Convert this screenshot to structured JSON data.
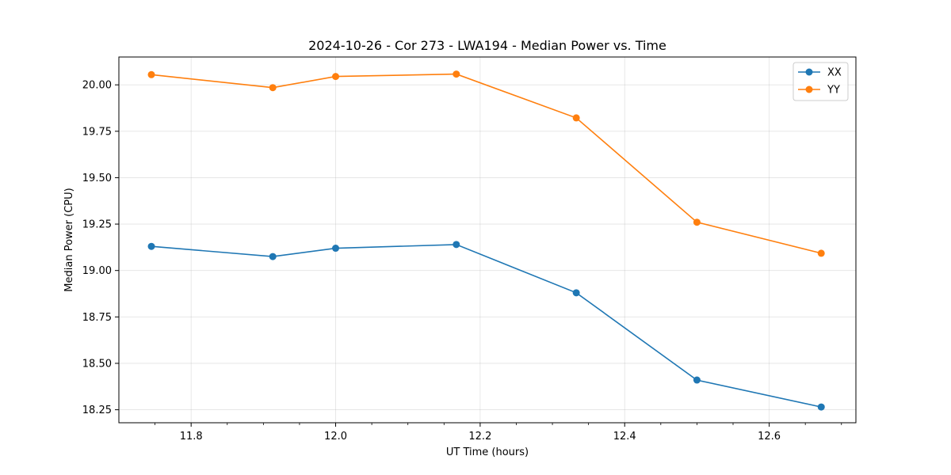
{
  "chart_data": {
    "type": "line",
    "title": "2024-10-26 - Cor 273 - LWA194 - Median Power vs. Time",
    "xlabel": "UT Time (hours)",
    "ylabel": "Median Power (CPU)",
    "xlim": [
      11.7,
      12.72
    ],
    "ylim": [
      18.18,
      20.15
    ],
    "xticks": [
      11.8,
      12.0,
      12.2,
      12.4,
      12.6
    ],
    "xtick_labels": [
      "11.8",
      "12.0",
      "12.2",
      "12.4",
      "12.6"
    ],
    "x_minor_ticks": [
      11.75,
      11.85,
      11.9,
      11.95,
      12.05,
      12.1,
      12.15,
      12.25,
      12.3,
      12.35,
      12.45,
      12.5,
      12.55,
      12.65,
      12.7
    ],
    "yticks": [
      18.25,
      18.5,
      18.75,
      19.0,
      19.25,
      19.5,
      19.75,
      20.0
    ],
    "ytick_labels": [
      "18.25",
      "18.50",
      "18.75",
      "19.00",
      "19.25",
      "19.50",
      "19.75",
      "20.00"
    ],
    "grid": true,
    "legend_position": "top-right",
    "x": [
      11.745,
      11.913,
      12.0,
      12.167,
      12.333,
      12.5,
      12.672
    ],
    "series": [
      {
        "name": "XX",
        "color": "#1f77b4",
        "values": [
          19.13,
          19.075,
          19.12,
          19.14,
          18.88,
          18.41,
          18.265
        ]
      },
      {
        "name": "YY",
        "color": "#ff7f0e",
        "values": [
          20.055,
          19.985,
          20.045,
          20.058,
          19.822,
          19.26,
          19.093
        ]
      }
    ]
  }
}
